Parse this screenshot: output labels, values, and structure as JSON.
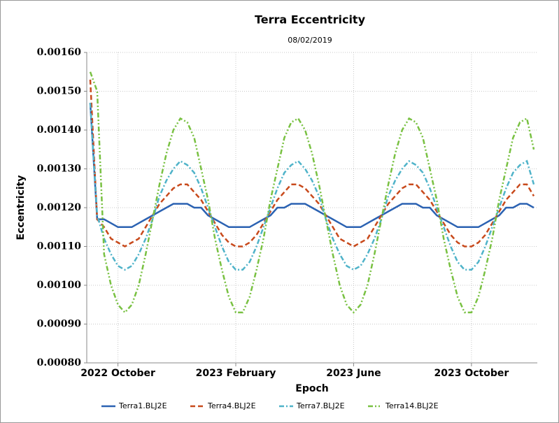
{
  "chart_data": {
    "type": "line",
    "title": "Terra Eccentricity",
    "subtitle": "08/02/2019",
    "x_label": "Epoch",
    "y_label": "Eccentricity",
    "categories": [
      null,
      null,
      null,
      null,
      "2022 October",
      null,
      null,
      null,
      null,
      null,
      null,
      null,
      null,
      null,
      null,
      null,
      null,
      null,
      null,
      null,
      null,
      "2023 February",
      null,
      null,
      null,
      null,
      null,
      null,
      null,
      null,
      null,
      null,
      null,
      null,
      null,
      null,
      null,
      null,
      "2023 June",
      null,
      null,
      null,
      null,
      null,
      null,
      null,
      null,
      null,
      null,
      null,
      null,
      null,
      null,
      null,
      null,
      "2023 October",
      null,
      null,
      null,
      null,
      null,
      null,
      null,
      null,
      null
    ],
    "ylim": [
      0.0008,
      0.0016
    ],
    "yticks": [
      {
        "value": 0.0008,
        "label": "0.00080"
      },
      {
        "value": 0.0009,
        "label": "0.00090"
      },
      {
        "value": 0.001,
        "label": "0.00100"
      },
      {
        "value": 0.0011,
        "label": "0.00110"
      },
      {
        "value": 0.0012,
        "label": "0.00120"
      },
      {
        "value": 0.0013,
        "label": "0.00130"
      },
      {
        "value": 0.0014,
        "label": "0.00140"
      },
      {
        "value": 0.0015,
        "label": "0.00150"
      },
      {
        "value": 0.0016,
        "label": "0.00160"
      }
    ],
    "grid": true,
    "legend_position": "bottom",
    "series": [
      {
        "name": "Terra1.BLJ2E",
        "color": "#2b62b2",
        "dash": "solid",
        "values": [
          0.00147,
          0.00117,
          0.00117,
          0.00116,
          0.00115,
          0.00115,
          0.00115,
          0.00116,
          0.00117,
          0.00118,
          0.00119,
          0.0012,
          0.00121,
          0.00121,
          0.00121,
          0.0012,
          0.0012,
          0.00118,
          0.00117,
          0.00116,
          0.00115,
          0.00115,
          0.00115,
          0.00115,
          0.00116,
          0.00117,
          0.00118,
          0.0012,
          0.0012,
          0.00121,
          0.00121,
          0.00121,
          0.0012,
          0.00119,
          0.00118,
          0.00117,
          0.00116,
          0.00115,
          0.00115,
          0.00115,
          0.00116,
          0.00117,
          0.00118,
          0.00119,
          0.0012,
          0.00121,
          0.00121,
          0.00121,
          0.0012,
          0.0012,
          0.00118,
          0.00117,
          0.00116,
          0.00115,
          0.00115,
          0.00115,
          0.00115,
          0.00116,
          0.00117,
          0.00118,
          0.0012,
          0.0012,
          0.00121,
          0.00121,
          0.0012
        ]
      },
      {
        "name": "Terra4.BLJ2E",
        "color": "#c84a1c",
        "dash": "dashed",
        "values": [
          0.00153,
          0.00117,
          0.00115,
          0.00112,
          0.00111,
          0.0011,
          0.00111,
          0.00112,
          0.00115,
          0.00118,
          0.00121,
          0.00123,
          0.00125,
          0.00126,
          0.00126,
          0.00124,
          0.00122,
          0.00119,
          0.00116,
          0.00113,
          0.00111,
          0.0011,
          0.0011,
          0.00111,
          0.00113,
          0.00116,
          0.00119,
          0.00122,
          0.00124,
          0.00126,
          0.00126,
          0.00125,
          0.00123,
          0.00121,
          0.00118,
          0.00115,
          0.00112,
          0.00111,
          0.0011,
          0.00111,
          0.00112,
          0.00115,
          0.00118,
          0.00121,
          0.00123,
          0.00125,
          0.00126,
          0.00126,
          0.00124,
          0.00122,
          0.00119,
          0.00116,
          0.00113,
          0.00111,
          0.0011,
          0.0011,
          0.00111,
          0.00113,
          0.00116,
          0.00119,
          0.00122,
          0.00124,
          0.00126,
          0.00126,
          0.00123
        ]
      },
      {
        "name": "Terra7.BLJ2E",
        "color": "#4fb3c9",
        "dash": "dashdot",
        "values": [
          0.00147,
          0.00118,
          0.00112,
          0.00108,
          0.00105,
          0.00104,
          0.00105,
          0.00108,
          0.00112,
          0.00117,
          0.00123,
          0.00127,
          0.0013,
          0.00132,
          0.00131,
          0.00129,
          0.00125,
          0.0012,
          0.00115,
          0.0011,
          0.00106,
          0.00104,
          0.00104,
          0.00106,
          0.0011,
          0.00115,
          0.0012,
          0.00125,
          0.00129,
          0.00131,
          0.00132,
          0.0013,
          0.00127,
          0.00123,
          0.00117,
          0.00112,
          0.00108,
          0.00105,
          0.00104,
          0.00105,
          0.00108,
          0.00112,
          0.00117,
          0.00123,
          0.00127,
          0.0013,
          0.00132,
          0.00131,
          0.00129,
          0.00125,
          0.0012,
          0.00115,
          0.0011,
          0.00106,
          0.00104,
          0.00104,
          0.00106,
          0.0011,
          0.00115,
          0.0012,
          0.00125,
          0.00129,
          0.00131,
          0.00132,
          0.00126
        ]
      },
      {
        "name": "Terra14.BLJ2E",
        "color": "#79c142",
        "dash": "dashdotdot",
        "values": [
          0.00155,
          0.0015,
          0.00108,
          0.001,
          0.00095,
          0.00093,
          0.00095,
          0.001,
          0.00108,
          0.00117,
          0.00126,
          0.00134,
          0.0014,
          0.00143,
          0.00142,
          0.00138,
          0.0013,
          0.00122,
          0.00112,
          0.00104,
          0.00097,
          0.00093,
          0.00093,
          0.00097,
          0.00104,
          0.00112,
          0.00122,
          0.0013,
          0.00138,
          0.00142,
          0.00143,
          0.0014,
          0.00134,
          0.00126,
          0.00117,
          0.00108,
          0.001,
          0.00095,
          0.00093,
          0.00095,
          0.001,
          0.00108,
          0.00117,
          0.00126,
          0.00134,
          0.0014,
          0.00143,
          0.00142,
          0.00138,
          0.0013,
          0.00122,
          0.00112,
          0.00104,
          0.00097,
          0.00093,
          0.00093,
          0.00097,
          0.00104,
          0.00112,
          0.00122,
          0.0013,
          0.00138,
          0.00142,
          0.00143,
          0.00135
        ]
      }
    ]
  }
}
